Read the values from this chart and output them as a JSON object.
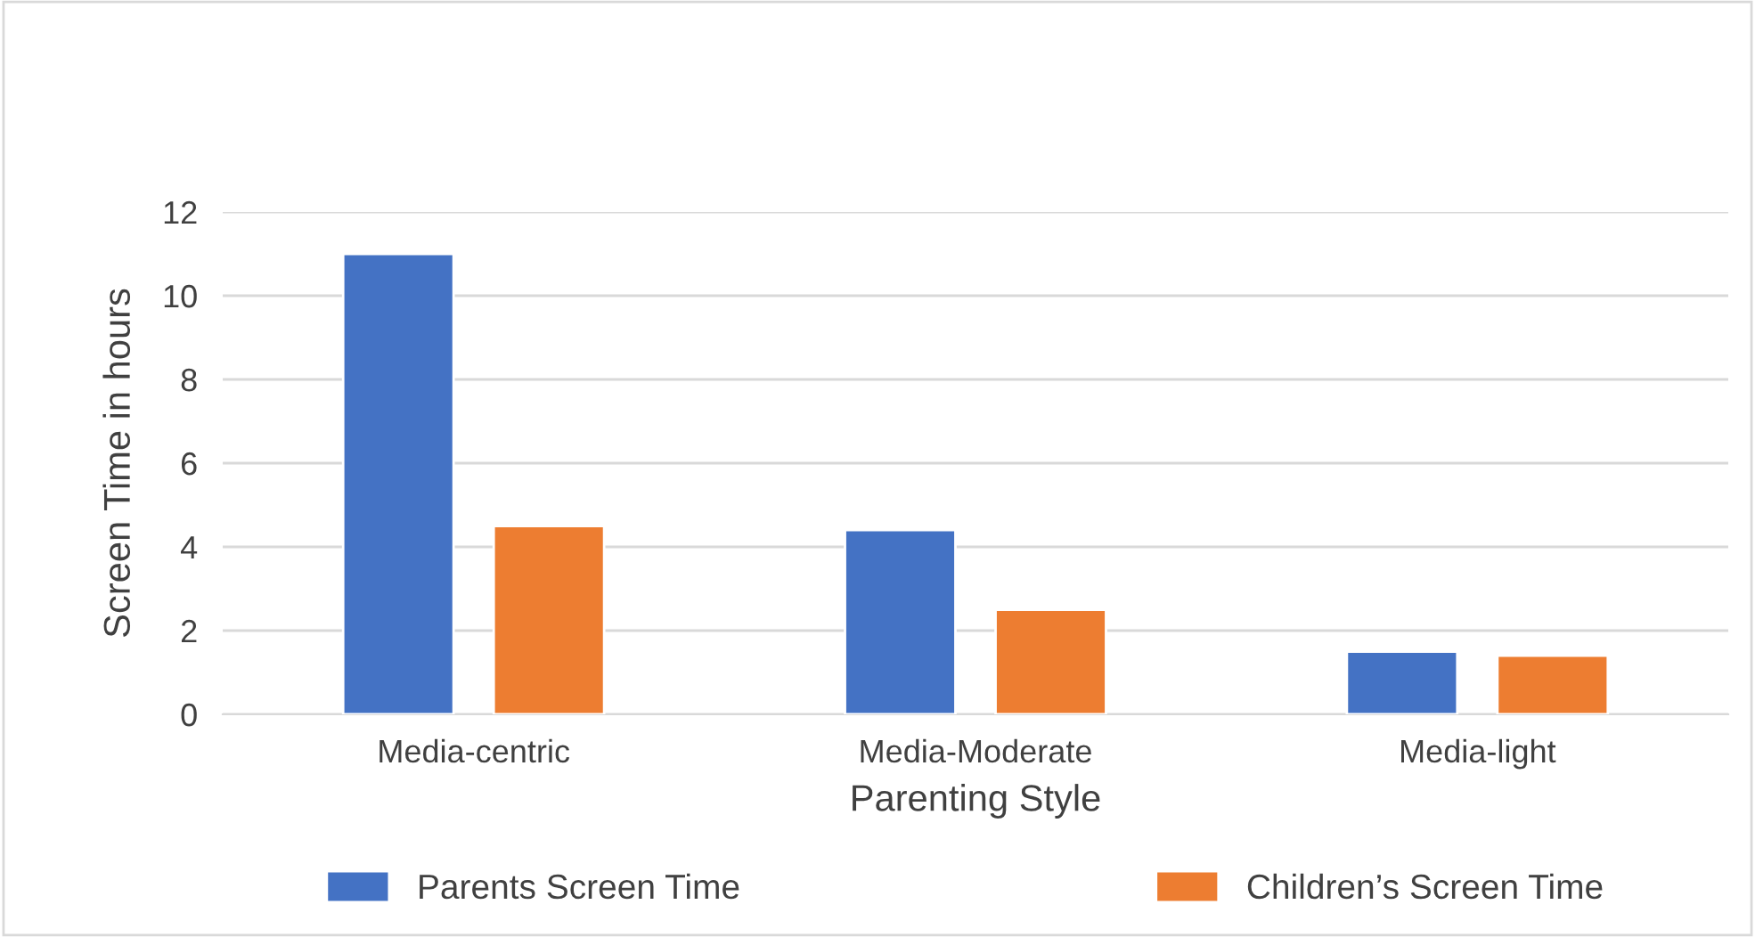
{
  "chart_data": {
    "type": "bar",
    "xlabel": "Parenting Style",
    "ylabel": "Screen Time in hours",
    "categories": [
      "Media-centric",
      "Media-Moderate",
      "Media-light"
    ],
    "series": [
      {
        "name": "Parents Screen Time",
        "color": "#4472c4",
        "values": [
          11,
          4.4,
          1.5
        ]
      },
      {
        "name": "Children’s Screen Time",
        "color": "#ed7d31",
        "values": [
          4.5,
          2.5,
          1.4
        ]
      }
    ],
    "ylim": [
      0,
      12
    ],
    "yticks": [
      0,
      2,
      4,
      6,
      8,
      10,
      12
    ],
    "grid": "y",
    "legend": "bottom"
  }
}
